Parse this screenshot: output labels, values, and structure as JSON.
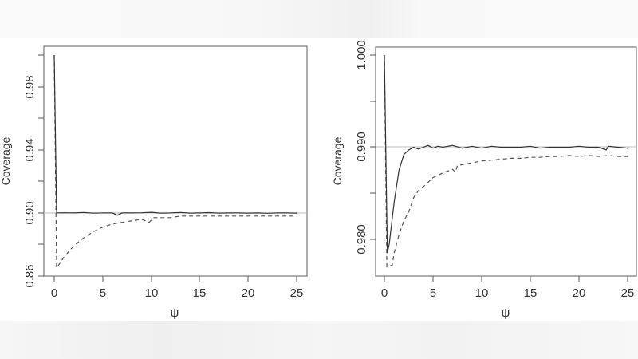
{
  "chart_data": [
    {
      "type": "line",
      "title": "",
      "xlabel": "ψ",
      "ylabel": "Coverage",
      "xlim": [
        0,
        25
      ],
      "ylim": [
        0.86,
        1.0
      ],
      "xticks": [
        0,
        5,
        10,
        15,
        20,
        25
      ],
      "yticks": [
        0.86,
        0.88,
        0.9,
        0.92,
        0.94,
        0.96,
        0.98,
        1.0
      ],
      "ytick_labels": [
        "0.86",
        "",
        "0.90",
        "",
        "0.94",
        "",
        "0.98",
        ""
      ],
      "reference_line": 0.9,
      "grid": false,
      "legend": "none",
      "series": [
        {
          "name": "solid",
          "style": "solid",
          "x": [
            0,
            0.25,
            1,
            2,
            3,
            4,
            5,
            6,
            6.5,
            7,
            8,
            9,
            10,
            11,
            12,
            13,
            14,
            15,
            16,
            17,
            18,
            19,
            20,
            21,
            22,
            23,
            24,
            25
          ],
          "values": [
            1.0,
            0.9,
            0.9001,
            0.9,
            0.9003,
            0.8999,
            0.9,
            0.9,
            0.8985,
            0.9,
            0.9,
            0.9001,
            0.9004,
            0.8999,
            0.9,
            0.9003,
            0.8999,
            0.9,
            0.9002,
            0.8999,
            0.9,
            0.9,
            0.8999,
            0.9,
            0.8998,
            0.9,
            0.9,
            0.8999
          ]
        },
        {
          "name": "dashed",
          "style": "dashed",
          "x": [
            0,
            0.25,
            1,
            2,
            3,
            4,
            5,
            6,
            7,
            8,
            9,
            9.8,
            10.2,
            11,
            12,
            13,
            14,
            15,
            16,
            17,
            18,
            19,
            20,
            21,
            22,
            23,
            24,
            25
          ],
          "values": [
            1.0,
            0.865,
            0.872,
            0.879,
            0.884,
            0.888,
            0.891,
            0.893,
            0.894,
            0.895,
            0.896,
            0.894,
            0.897,
            0.897,
            0.897,
            0.898,
            0.898,
            0.898,
            0.898,
            0.898,
            0.898,
            0.898,
            0.898,
            0.898,
            0.898,
            0.898,
            0.898,
            0.898
          ]
        }
      ]
    },
    {
      "type": "line",
      "title": "",
      "xlabel": "ψ",
      "ylabel": "Coverage",
      "xlim": [
        0,
        25
      ],
      "ylim": [
        0.976,
        1.0
      ],
      "xticks": [
        0,
        5,
        10,
        15,
        20,
        25
      ],
      "yticks": [
        0.98,
        0.985,
        0.99,
        0.995,
        1.0
      ],
      "ytick_labels": [
        "0.980",
        "",
        "0.990",
        "",
        "1.000"
      ],
      "reference_line": 0.99,
      "grid": false,
      "legend": "none",
      "series": [
        {
          "name": "solid",
          "style": "solid",
          "x": [
            0,
            0.3,
            0.5,
            1,
            1.5,
            2,
            2.5,
            3,
            3.5,
            4,
            4.5,
            5,
            5.5,
            6,
            7,
            8,
            9,
            10,
            11,
            12,
            13,
            14,
            15,
            16,
            17,
            18,
            19,
            20,
            21,
            22,
            22.8,
            23,
            24,
            25
          ],
          "values": [
            1.0,
            0.9785,
            0.9795,
            0.984,
            0.9875,
            0.9892,
            0.9897,
            0.99,
            0.9898,
            0.99,
            0.9902,
            0.9899,
            0.9901,
            0.99,
            0.9902,
            0.9899,
            0.9901,
            0.9899,
            0.9901,
            0.99,
            0.99,
            0.99,
            0.9901,
            0.9899,
            0.99,
            0.99,
            0.99,
            0.9901,
            0.99,
            0.99,
            0.9897,
            0.9901,
            0.99,
            0.9899
          ]
        },
        {
          "name": "dashed",
          "style": "dashed",
          "x": [
            0,
            0.25,
            0.8,
            1,
            1.5,
            2,
            2.5,
            3,
            3.5,
            4,
            4.5,
            5,
            6,
            7,
            7.3,
            7.5,
            8,
            9,
            10,
            11,
            12,
            13,
            14,
            15,
            16,
            17,
            18,
            19,
            20,
            21,
            22,
            23,
            24,
            25
          ],
          "values": [
            1.0,
            0.977,
            0.9772,
            0.9785,
            0.9805,
            0.982,
            0.983,
            0.9845,
            0.9853,
            0.9857,
            0.9862,
            0.9867,
            0.9872,
            0.9876,
            0.9873,
            0.988,
            0.9881,
            0.9883,
            0.9885,
            0.9886,
            0.9887,
            0.9888,
            0.9888,
            0.9889,
            0.9889,
            0.989,
            0.989,
            0.9891,
            0.989,
            0.9891,
            0.989,
            0.9891,
            0.989,
            0.989
          ]
        }
      ]
    }
  ],
  "left": {
    "ylabel": "Coverage",
    "xlabel": "ψ",
    "xtick_labels": [
      "0",
      "5",
      "10",
      "15",
      "20",
      "25"
    ],
    "ytick_labels": [
      "0.86",
      "0.90",
      "0.94",
      "0.98"
    ]
  },
  "right": {
    "ylabel": "Coverage",
    "xlabel": "ψ",
    "xtick_labels": [
      "0",
      "5",
      "10",
      "15",
      "20",
      "25"
    ],
    "ytick_labels": [
      "0.980",
      "0.990",
      "1.000"
    ]
  }
}
